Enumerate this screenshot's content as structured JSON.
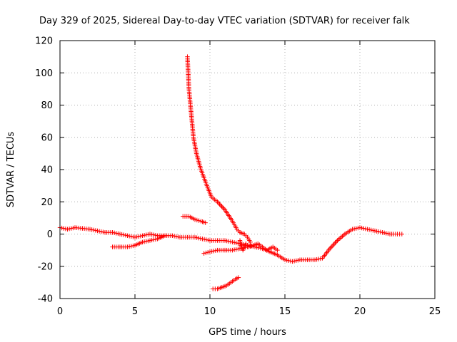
{
  "chart_data": {
    "type": "scatter",
    "title": "Day 329 of 2025, Sidereal Day-to-day VTEC variation (SDTVAR) for receiver falk",
    "xlabel": "GPS time / hours",
    "ylabel": "SDTVAR / TECUs",
    "xlim": [
      0,
      25
    ],
    "ylim": [
      -40,
      120
    ],
    "xticks": [
      0,
      5,
      10,
      15,
      20,
      25
    ],
    "yticks": [
      -40,
      -20,
      0,
      20,
      40,
      60,
      80,
      100,
      120
    ],
    "grid": true,
    "marker": "+",
    "color": "#ff0000",
    "series": [
      {
        "name": "main-track",
        "points": [
          [
            0,
            4
          ],
          [
            0.5,
            3
          ],
          [
            1,
            4
          ],
          [
            1.5,
            3.5
          ],
          [
            2,
            3
          ],
          [
            2.5,
            2
          ],
          [
            3,
            1
          ],
          [
            3.5,
            1
          ],
          [
            4,
            0
          ],
          [
            4.5,
            -1
          ],
          [
            5,
            -2
          ],
          [
            5.5,
            -1
          ],
          [
            6,
            0
          ],
          [
            6.5,
            -1
          ],
          [
            7,
            -1
          ],
          [
            7.5,
            -1
          ],
          [
            8,
            -2
          ],
          [
            8.5,
            -2
          ],
          [
            9,
            -2
          ],
          [
            9.5,
            -3
          ],
          [
            10,
            -4
          ],
          [
            10.5,
            -4
          ],
          [
            11,
            -4
          ],
          [
            11.5,
            -5
          ],
          [
            12,
            -6
          ],
          [
            12.5,
            -7
          ],
          [
            13,
            -8
          ],
          [
            13.5,
            -9
          ],
          [
            14,
            -11
          ],
          [
            14.5,
            -13
          ],
          [
            15,
            -16
          ],
          [
            15.5,
            -17
          ],
          [
            16,
            -16
          ],
          [
            16.5,
            -16
          ],
          [
            17,
            -16
          ],
          [
            17.5,
            -15
          ],
          [
            18,
            -9
          ],
          [
            18.5,
            -4
          ],
          [
            19,
            0
          ],
          [
            19.5,
            3
          ],
          [
            20,
            4
          ],
          [
            20.5,
            3
          ],
          [
            21,
            2
          ],
          [
            21.5,
            1
          ],
          [
            22,
            0
          ],
          [
            22.5,
            0
          ],
          [
            22.8,
            0
          ]
        ]
      },
      {
        "name": "lower-track-1",
        "points": [
          [
            3.5,
            -8
          ],
          [
            4,
            -8
          ],
          [
            4.5,
            -8
          ],
          [
            5,
            -7
          ],
          [
            5.5,
            -5
          ],
          [
            6,
            -4
          ],
          [
            6.5,
            -3
          ],
          [
            7,
            -1
          ]
        ]
      },
      {
        "name": "lower-track-2",
        "points": [
          [
            9.6,
            -12
          ],
          [
            10,
            -11
          ],
          [
            10.5,
            -10
          ],
          [
            11,
            -10
          ],
          [
            11.5,
            -10
          ],
          [
            12,
            -9
          ],
          [
            12.5,
            -8
          ],
          [
            12.7,
            -7
          ]
        ]
      },
      {
        "name": "upper-track",
        "points": [
          [
            8.2,
            11
          ],
          [
            8.6,
            11
          ],
          [
            9,
            9
          ],
          [
            9.4,
            8
          ],
          [
            9.7,
            7
          ]
        ]
      },
      {
        "name": "spike-track",
        "points": [
          [
            8.5,
            110
          ],
          [
            8.55,
            100
          ],
          [
            8.6,
            90
          ],
          [
            8.7,
            80
          ],
          [
            8.8,
            70
          ],
          [
            8.9,
            60
          ],
          [
            9.1,
            50
          ],
          [
            9.4,
            40
          ],
          [
            9.8,
            30
          ],
          [
            10.1,
            23
          ],
          [
            10.5,
            20
          ],
          [
            11,
            15
          ],
          [
            11.5,
            8
          ],
          [
            11.8,
            3
          ],
          [
            12,
            1
          ],
          [
            12.3,
            0
          ],
          [
            12.5,
            -2
          ],
          [
            12.7,
            -5
          ]
        ]
      },
      {
        "name": "bottom-track",
        "points": [
          [
            10.2,
            -34
          ],
          [
            10.5,
            -34
          ],
          [
            10.8,
            -33
          ],
          [
            11.1,
            -32
          ],
          [
            11.4,
            -30
          ],
          [
            11.7,
            -28
          ],
          [
            11.9,
            -27
          ]
        ]
      },
      {
        "name": "cluster-track",
        "points": [
          [
            12,
            -4
          ],
          [
            12.1,
            -8
          ],
          [
            12.2,
            -10
          ],
          [
            12.4,
            -6
          ],
          [
            12.6,
            -8
          ],
          [
            13.2,
            -6
          ],
          [
            13.5,
            -8
          ],
          [
            13.8,
            -10
          ],
          [
            14.2,
            -8
          ],
          [
            14.5,
            -10
          ]
        ]
      }
    ]
  }
}
